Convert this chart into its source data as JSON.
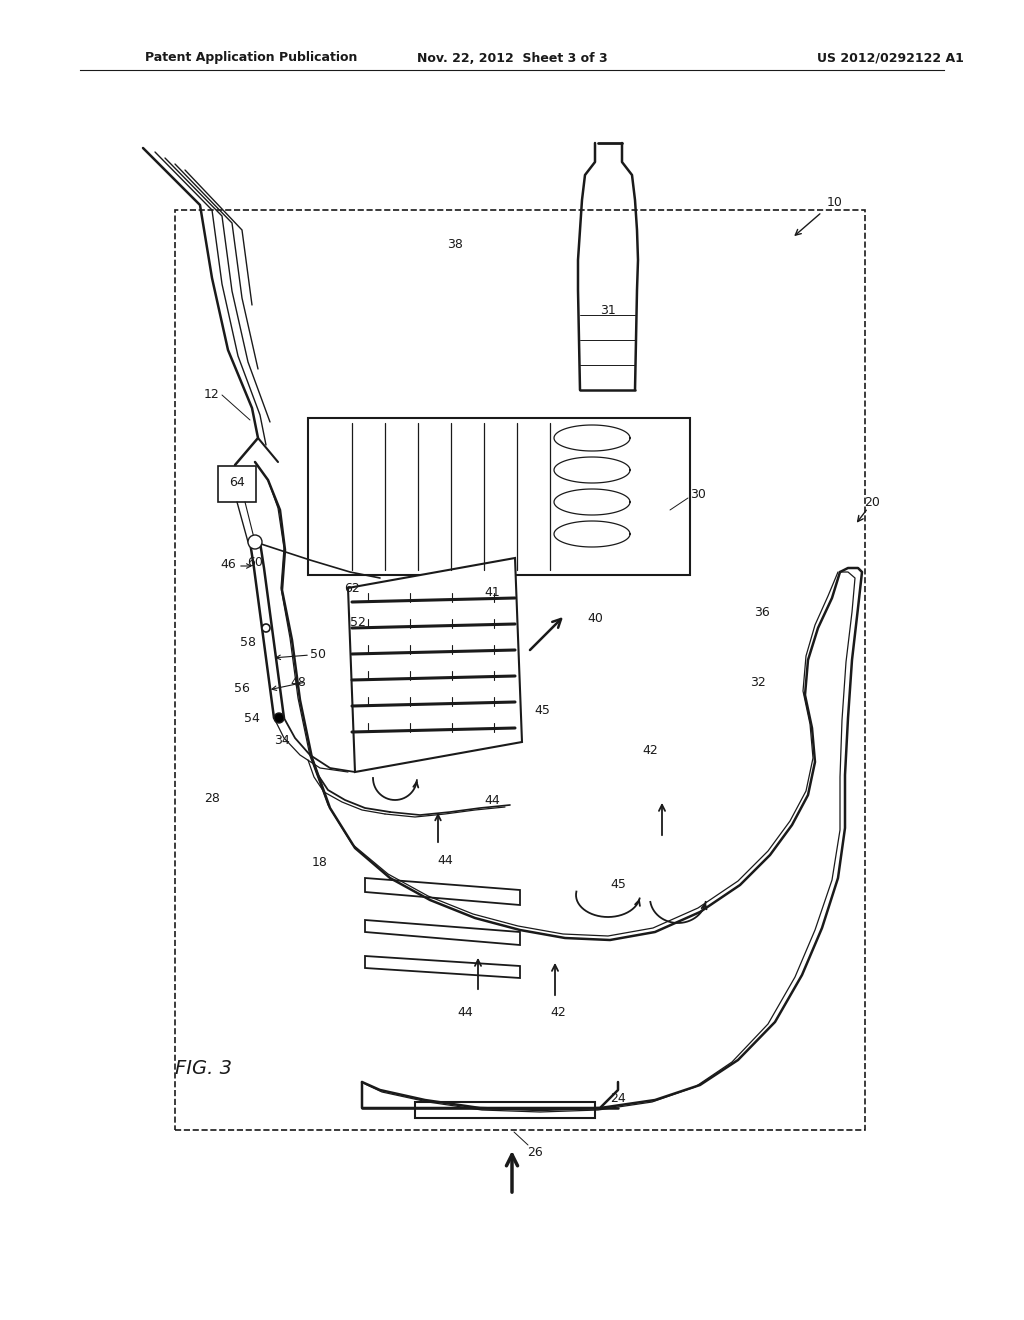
{
  "title_left": "Patent Application Publication",
  "title_mid": "Nov. 22, 2012  Sheet 3 of 3",
  "title_right": "US 2012/0292122 A1",
  "fig_label": "FIG. 3",
  "bg": "#ffffff",
  "lc": "#1a1a1a"
}
